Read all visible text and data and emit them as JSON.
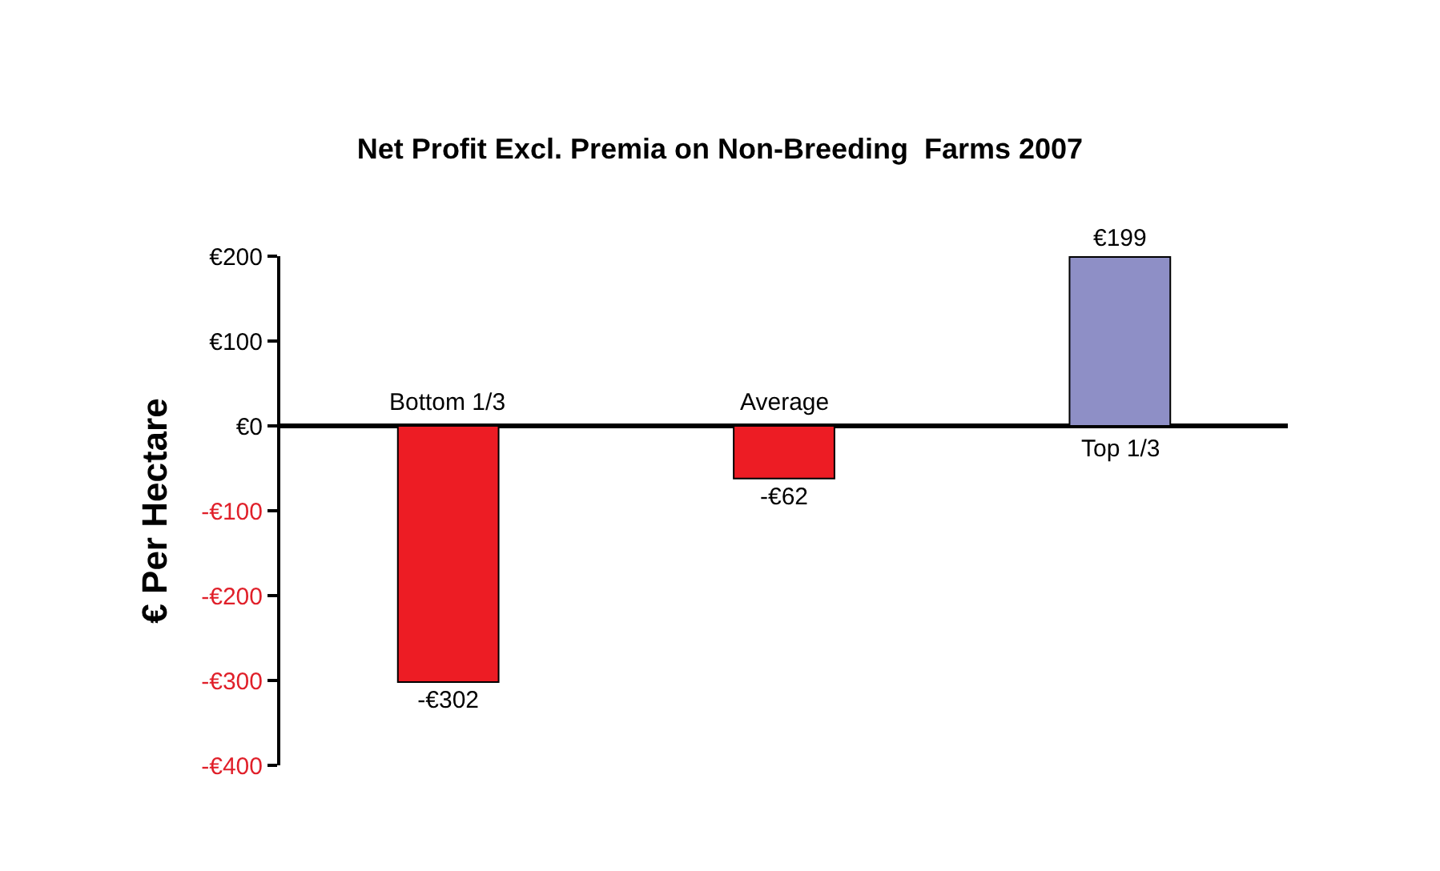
{
  "chart_data": {
    "type": "bar",
    "title": "Net Profit Excl. Premia on Non-Breeding  Farms 2007",
    "ylabel": "€ Per Hectare",
    "categories": [
      "Bottom 1/3",
      "Average",
      "Top 1/3"
    ],
    "values": [
      -302,
      -62,
      199
    ],
    "colors": [
      "#ed1c24",
      "#ed1c24",
      "#8e8fc6"
    ],
    "value_labels": [
      "-€302",
      "-€62",
      "€199"
    ],
    "ylim": [
      -400,
      200
    ],
    "yticks": [
      {
        "value": 200,
        "label": "€200"
      },
      {
        "value": 100,
        "label": "€100"
      },
      {
        "value": 0,
        "label": "€0"
      },
      {
        "value": -100,
        "label": "-€100"
      },
      {
        "value": -200,
        "label": "-€200"
      },
      {
        "value": -300,
        "label": "-€300"
      },
      {
        "value": -400,
        "label": "-€400"
      }
    ]
  }
}
